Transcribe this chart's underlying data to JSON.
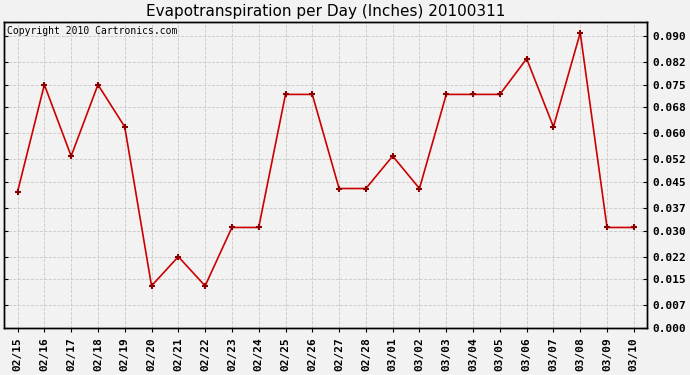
{
  "title": "Evapotranspiration per Day (Inches) 20100311",
  "copyright": "Copyright 2010 Cartronics.com",
  "x_labels": [
    "02/15",
    "02/16",
    "02/17",
    "02/18",
    "02/19",
    "02/20",
    "02/21",
    "02/22",
    "02/23",
    "02/24",
    "02/25",
    "02/26",
    "02/27",
    "02/28",
    "03/01",
    "03/02",
    "03/03",
    "03/04",
    "03/05",
    "03/06",
    "03/07",
    "03/08",
    "03/09",
    "03/10"
  ],
  "y_values": [
    0.042,
    0.075,
    0.053,
    0.075,
    0.062,
    0.013,
    0.022,
    0.013,
    0.031,
    0.031,
    0.072,
    0.072,
    0.043,
    0.043,
    0.053,
    0.043,
    0.072,
    0.072,
    0.072,
    0.083,
    0.062,
    0.091,
    0.031,
    0.031
  ],
  "y_ticks": [
    0.0,
    0.007,
    0.015,
    0.022,
    0.03,
    0.037,
    0.045,
    0.052,
    0.06,
    0.068,
    0.075,
    0.082,
    0.09
  ],
  "ylim": [
    0.0,
    0.0944
  ],
  "line_color": "#cc0000",
  "marker": "+",
  "marker_color": "#880000",
  "grid_color": "#c8c8c8",
  "bg_color": "#f2f2f2",
  "border_color": "#000000",
  "title_fontsize": 11,
  "copyright_fontsize": 7,
  "tick_fontsize": 8
}
